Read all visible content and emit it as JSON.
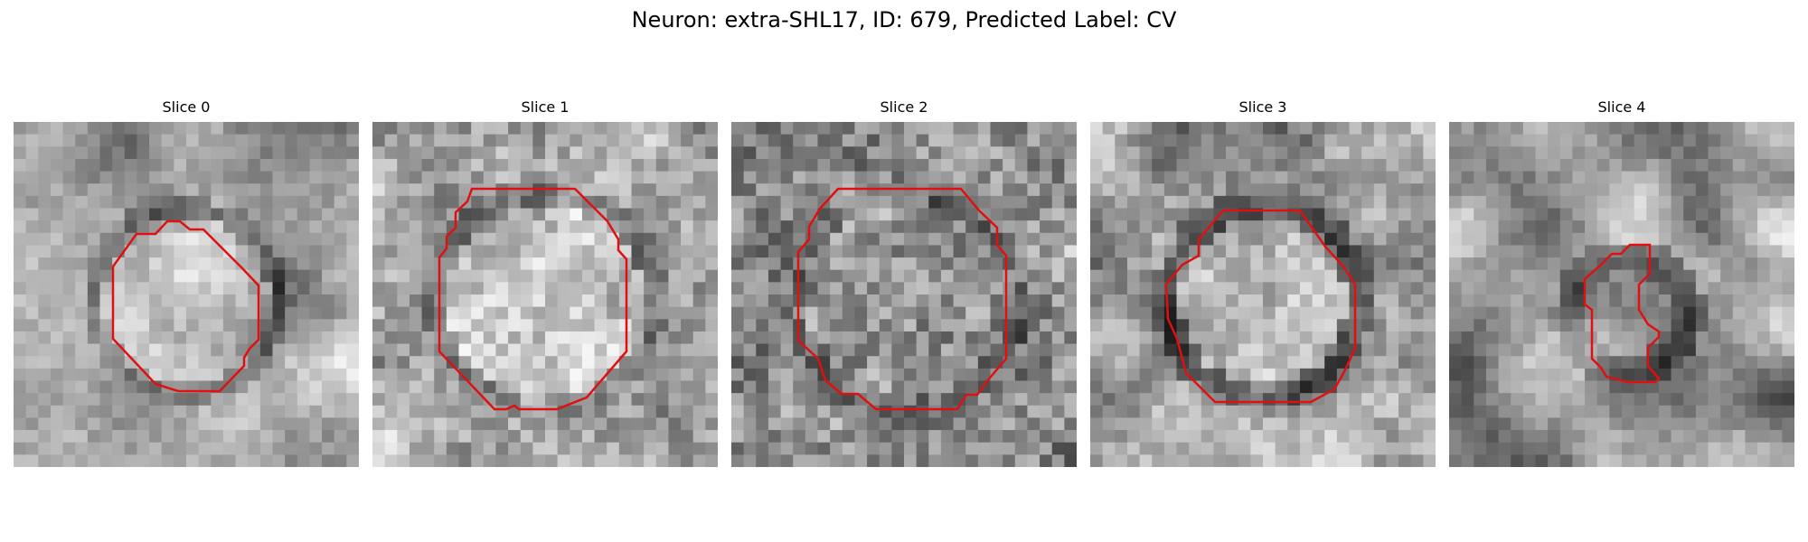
{
  "figure": {
    "title": "Neuron: extra-SHL17, ID: 679, Predicted Label: CV"
  },
  "panels": [
    {
      "label": "Slice 0",
      "outline_color": "#e01010"
    },
    {
      "label": "Slice 1",
      "outline_color": "#e01010"
    },
    {
      "label": "Slice 2",
      "outline_color": "#e01010"
    },
    {
      "label": "Slice 3",
      "outline_color": "#e01010"
    },
    {
      "label": "Slice 4",
      "outline_color": "#e01010"
    }
  ],
  "colors": {
    "outline": "#e01010",
    "background": "#ffffff"
  }
}
